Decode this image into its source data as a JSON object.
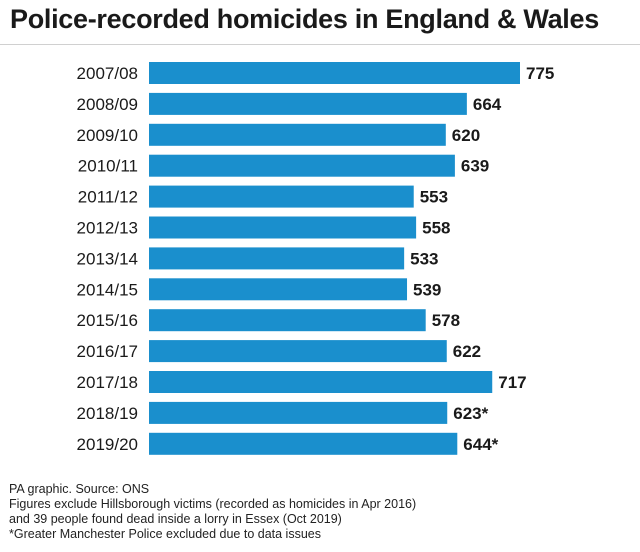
{
  "title": "Police-recorded homicides in England & Wales",
  "colors": {
    "bar": "#1a8fcd",
    "text": "#1a1a1a"
  },
  "chart_data": {
    "type": "bar",
    "orientation": "horizontal",
    "title": "Police-recorded homicides in England & Wales",
    "xlabel": "",
    "ylabel": "",
    "grid": false,
    "categories": [
      "2007/08",
      "2008/09",
      "2009/10",
      "2010/11",
      "2011/12",
      "2012/13",
      "2013/14",
      "2014/15",
      "2015/16",
      "2016/17",
      "2017/18",
      "2018/19",
      "2019/20"
    ],
    "values": [
      775,
      664,
      620,
      639,
      553,
      558,
      533,
      539,
      578,
      622,
      717,
      623,
      644
    ],
    "value_labels": [
      "775",
      "664",
      "620",
      "639",
      "553",
      "558",
      "533",
      "539",
      "578",
      "622",
      "717",
      "623*",
      "644*"
    ],
    "xlim": [
      0,
      775
    ]
  },
  "footnotes": [
    "PA graphic. Source: ONS",
    "Figures exclude Hillsborough victims (recorded as homicides in Apr 2016)",
    "and 39 people found dead inside a lorry in Essex (Oct 2019)",
    "*Greater Manchester Police excluded due to data issues"
  ]
}
